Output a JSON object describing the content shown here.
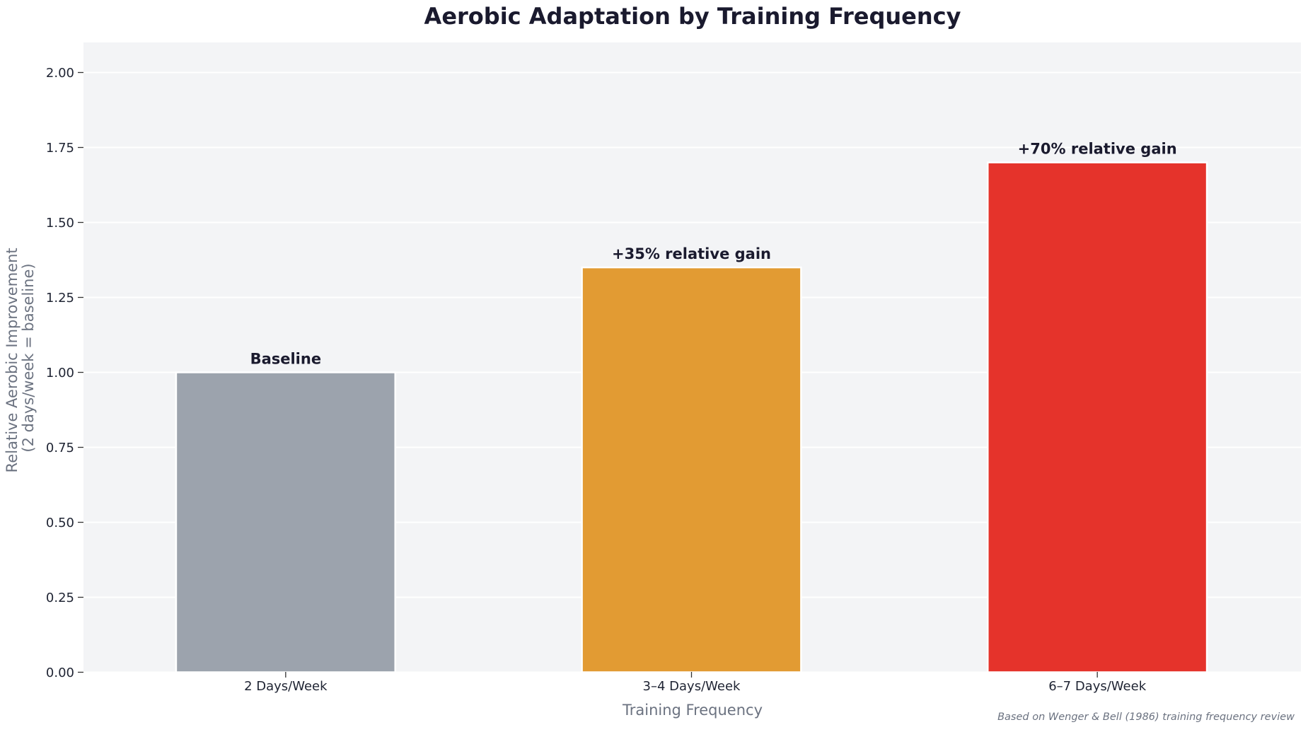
{
  "chart_data": {
    "type": "bar",
    "title": "Aerobic Adaptation by Training Frequency",
    "xlabel": "Training Frequency",
    "ylabel_lines": [
      "Relative Aerobic Improvement",
      "(2 days/week = baseline)"
    ],
    "categories": [
      "2 Days/Week",
      "3–4 Days/Week",
      "6–7 Days/Week"
    ],
    "values": [
      1.0,
      1.35,
      1.7
    ],
    "bar_labels": [
      "Baseline",
      "+35% relative gain",
      "+70% relative gain"
    ],
    "colors": [
      "#9ca3ad",
      "#e29b33",
      "#e5332b"
    ],
    "ylim": [
      0,
      2.1
    ],
    "yticks": [
      0.0,
      0.25,
      0.5,
      0.75,
      1.0,
      1.25,
      1.5,
      1.75,
      2.0
    ],
    "ytick_labels": [
      "0.00",
      "0.25",
      "0.50",
      "0.75",
      "1.00",
      "1.25",
      "1.50",
      "1.75",
      "2.00"
    ],
    "grid": true,
    "plot_background": "#f3f4f6",
    "grid_color": "#ffffff",
    "source_note": "Based on Wenger & Bell (1986) training frequency review"
  }
}
